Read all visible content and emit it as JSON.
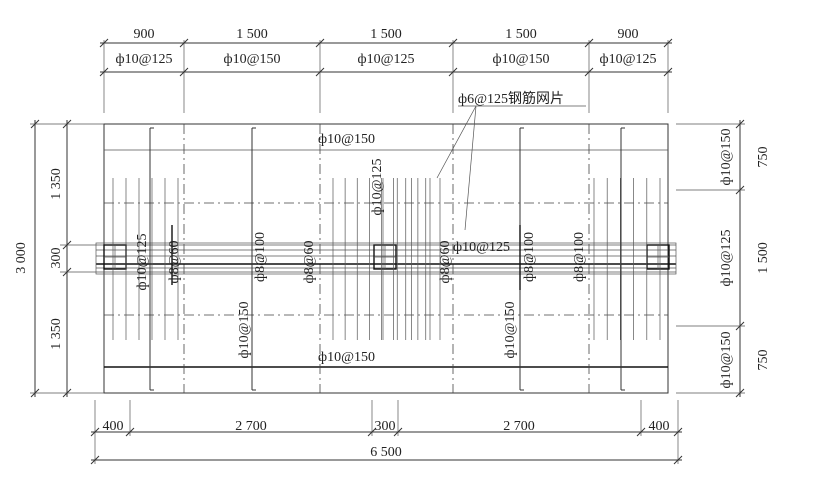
{
  "top_dims": {
    "spans": [
      "900",
      "1 500",
      "1 500",
      "1 500",
      "900"
    ],
    "rebars": [
      "ф10@125",
      "ф10@150",
      "ф10@125",
      "ф10@150",
      "ф10@125"
    ]
  },
  "mesh_note": "ф6@125钢筋网片",
  "left_dims": {
    "total": "3 000",
    "parts": [
      "1 350",
      "300",
      "1 350"
    ]
  },
  "right_dims": {
    "parts": [
      "750",
      "1 500",
      "750"
    ],
    "rebars": [
      "ф10@150",
      "ф10@125",
      "ф10@150"
    ]
  },
  "bottom_dims": {
    "parts": [
      "400",
      "2 700",
      "300",
      "2 700",
      "400"
    ],
    "total": "6 500"
  },
  "plan_labels": {
    "top_h": "ф10@150",
    "bottom_h": "ф10@150",
    "mid_h": "ф10@125",
    "v_left_125": "ф10@125",
    "v_8_60_a": "ф8@60",
    "v_8_100_a": "ф8@100",
    "v_8_60_b": "ф8@60",
    "v_center_125": "ф10@125",
    "v_8_60_c": "ф8@60",
    "v_8_100_b": "ф8@100",
    "v_8_100_c": "ф8@100",
    "v_150_a": "ф10@150",
    "v_150_b": "ф10@150"
  }
}
